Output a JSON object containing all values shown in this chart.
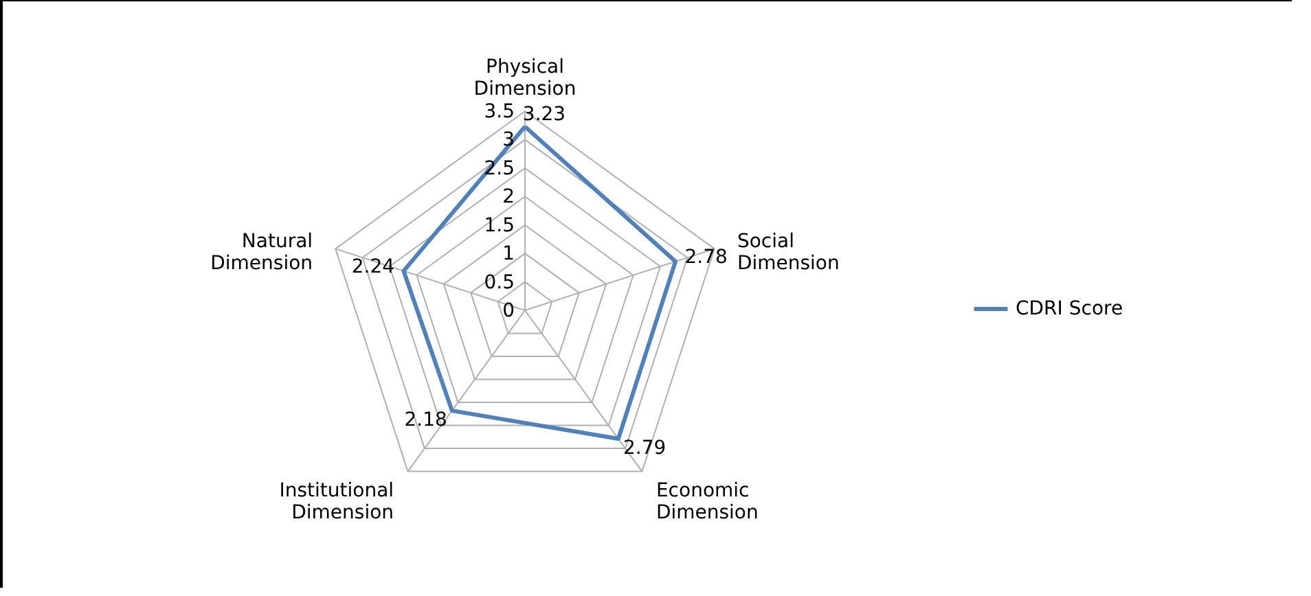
{
  "chart_data": {
    "type": "radar",
    "categories": [
      "Physical Dimension",
      "Social Dimension",
      "Economic Dimension",
      "Institutional Dimension",
      "Natural Dimension"
    ],
    "series": [
      {
        "name": "CDRI Score",
        "color": "#4f81bd",
        "values": [
          3.23,
          2.78,
          2.79,
          2.18,
          2.24
        ]
      }
    ],
    "ylim": [
      0,
      3.5
    ],
    "yticks": [
      0,
      0.5,
      1,
      1.5,
      2,
      2.5,
      3,
      3.5
    ],
    "data_labels": true,
    "legend": "right",
    "grid": true
  }
}
